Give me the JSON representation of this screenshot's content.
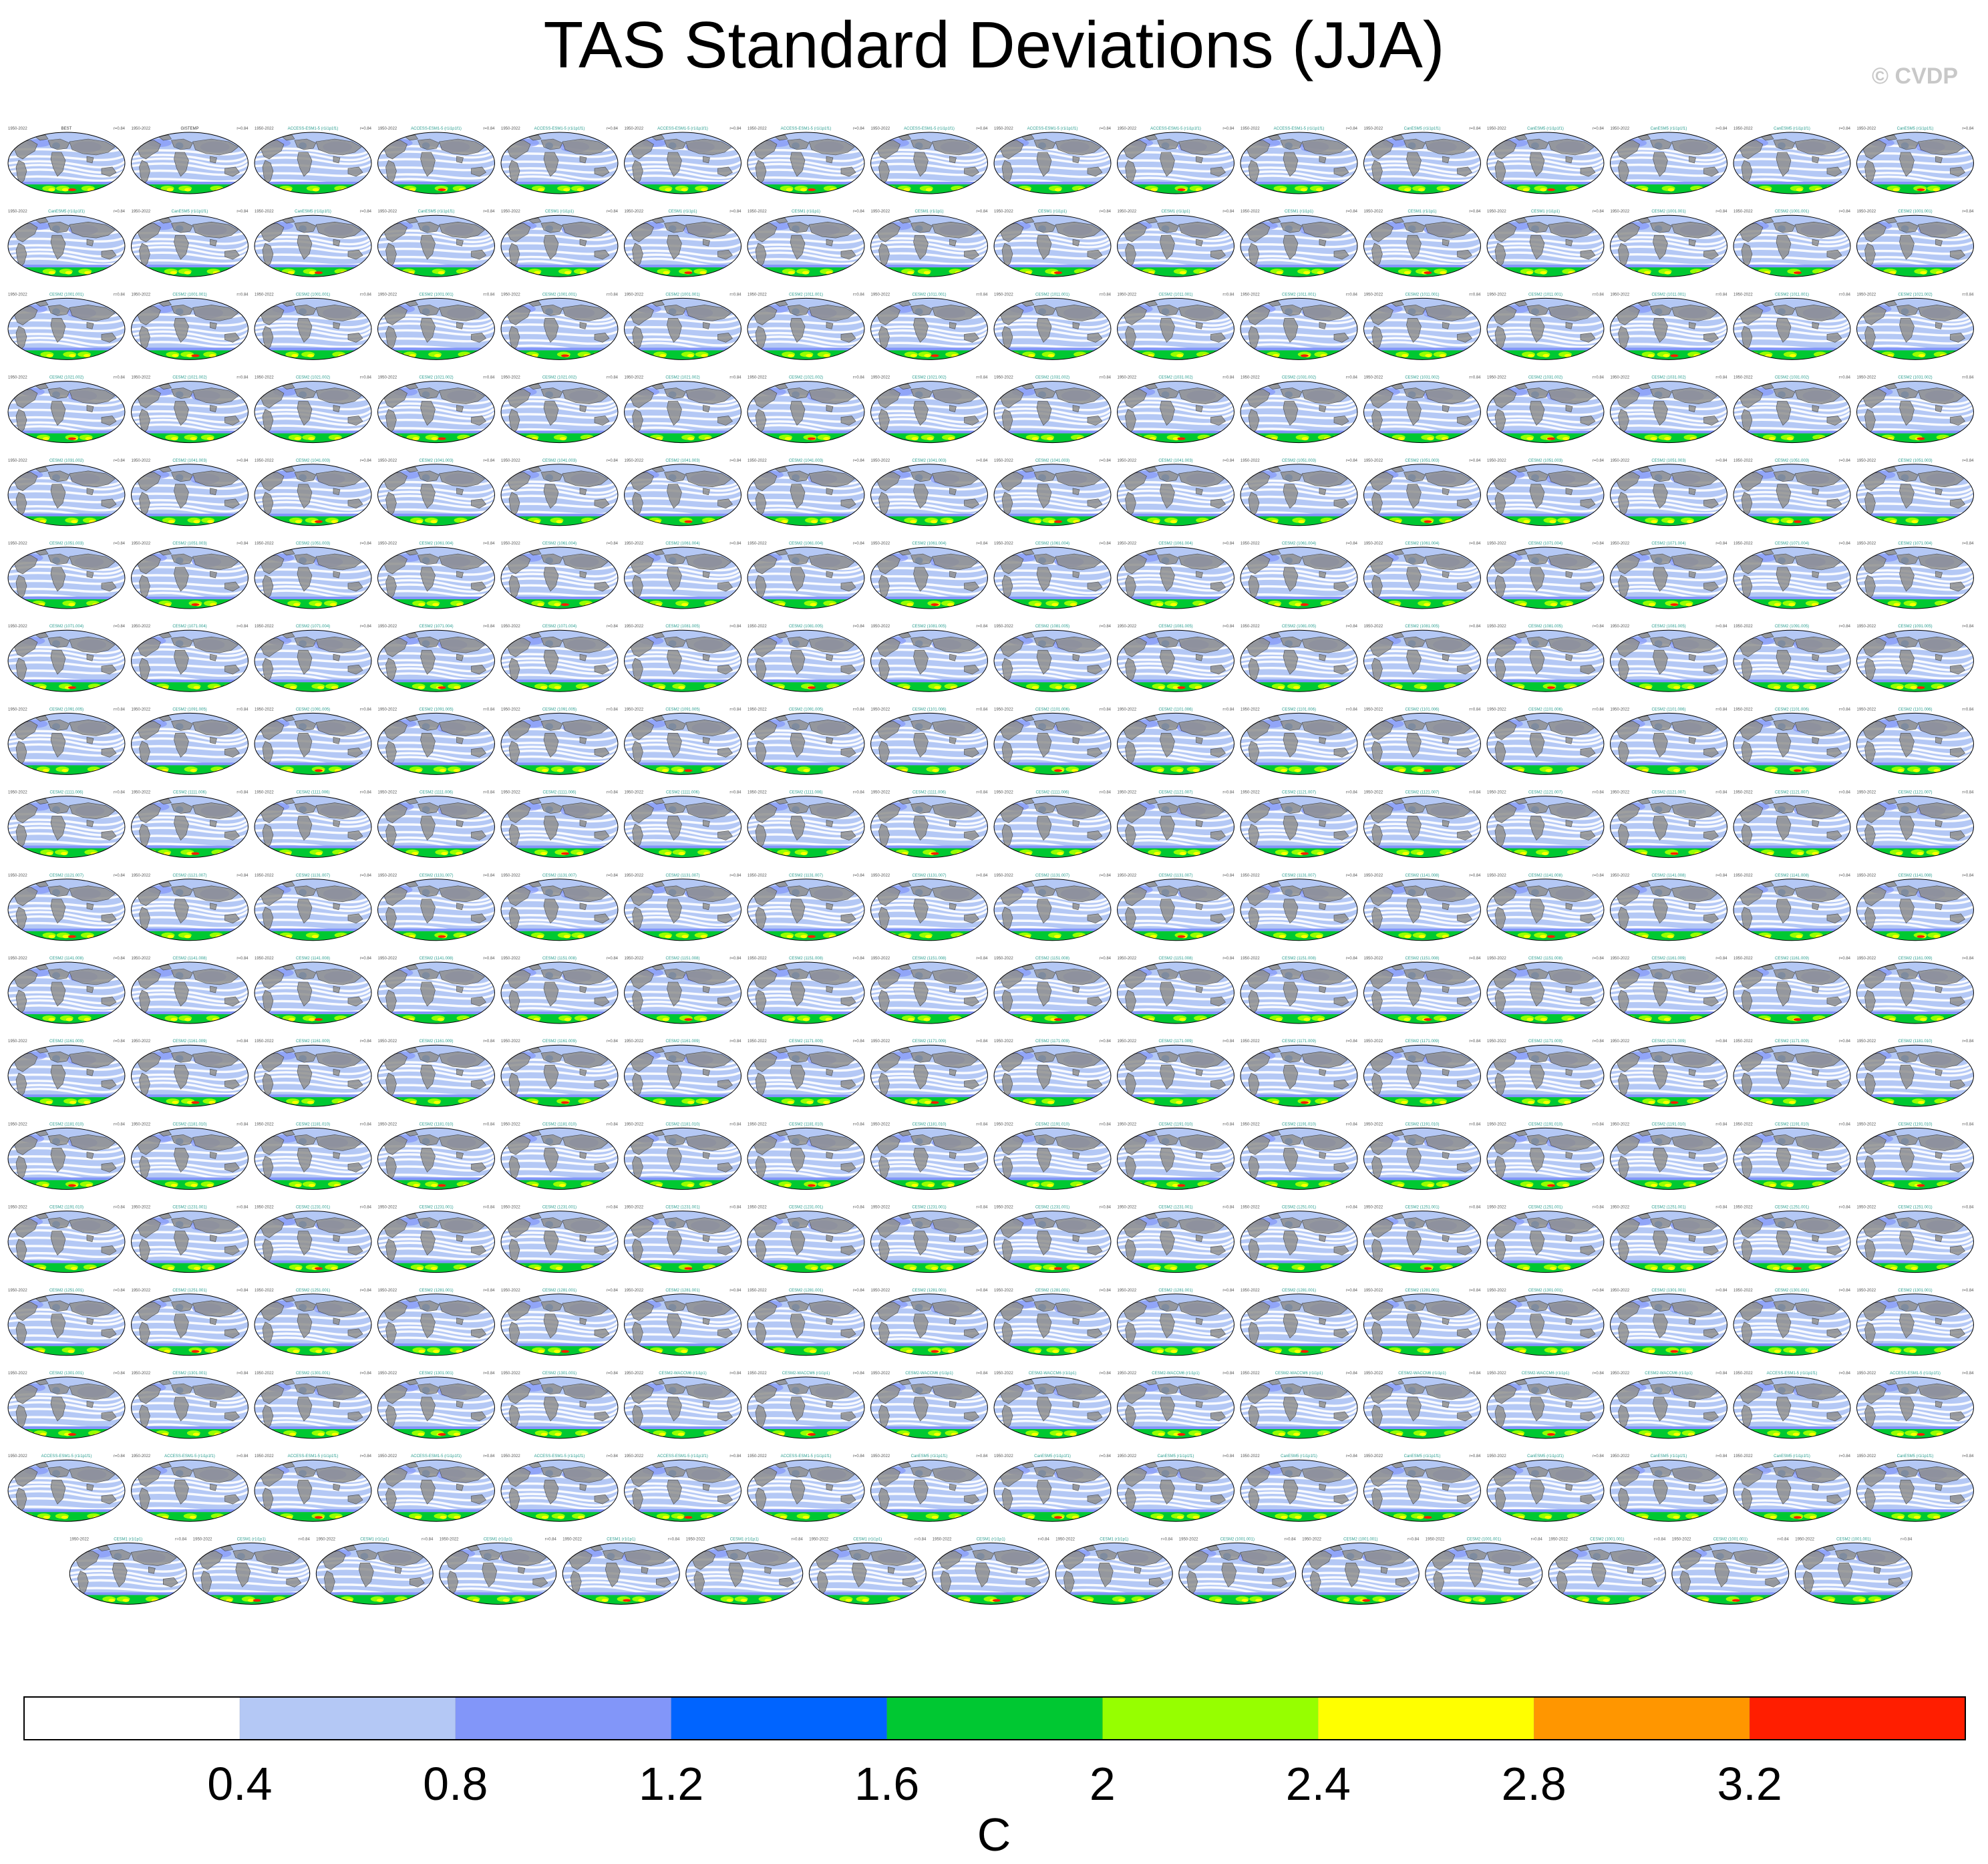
{
  "title": "TAS Standard Deviations (JJA)",
  "watermark": "© CVDP",
  "panels": {
    "layout_rows": [
      16,
      16,
      16,
      16,
      16,
      16,
      16,
      16,
      16,
      16,
      16,
      16,
      16,
      16,
      16,
      16,
      16,
      15
    ],
    "first_labels": [
      "BEST",
      "GISTEMP"
    ],
    "ensemble_labels": [
      "ACCESS-ESM1-5 (r1i1p1f1)",
      "CanESM5 (r1i1p1f1)",
      "CESM1 (r1i1p1)",
      "CESM2 (1001.001)",
      "CESM2 (1011.001)",
      "CESM2 (1021.002)",
      "CESM2 (1031.002)",
      "CESM2 (1041.003)",
      "CESM2 (1051.003)",
      "CESM2 (1061.004)",
      "CESM2 (1071.004)",
      "CESM2 (1081.005)",
      "CESM2 (1091.005)",
      "CESM2 (1101.006)",
      "CESM2 (1111.006)",
      "CESM2 (1121.007)",
      "CESM2 (1131.007)",
      "CESM2 (1141.008)",
      "CESM2 (1151.008)",
      "CESM2 (1161.009)",
      "CESM2 (1171.009)",
      "CESM2 (1181.010)",
      "CESM2 (1191.010)",
      "CESM2 (1231.001)",
      "CESM2 (1251.001)",
      "CESM2 (1281.001)",
      "CESM2 (1301.001)",
      "CESM2-WACCM6 (r1i1p1)"
    ],
    "period_label": "1950-2022",
    "stat_label": "r=0.84",
    "land_color": "#8f8f8f",
    "ocean_base_color": "#b4c8f5"
  },
  "colorbar": {
    "colors": [
      "#ffffff",
      "#b4c8f5",
      "#8296f9",
      "#0064ff",
      "#00c832",
      "#96ff00",
      "#ffff00",
      "#ff9600",
      "#ff1e00"
    ],
    "labels": [
      "0.4",
      "0.8",
      "1.2",
      "1.6",
      "2",
      "2.4",
      "2.8",
      "3.2"
    ],
    "units": "C"
  }
}
